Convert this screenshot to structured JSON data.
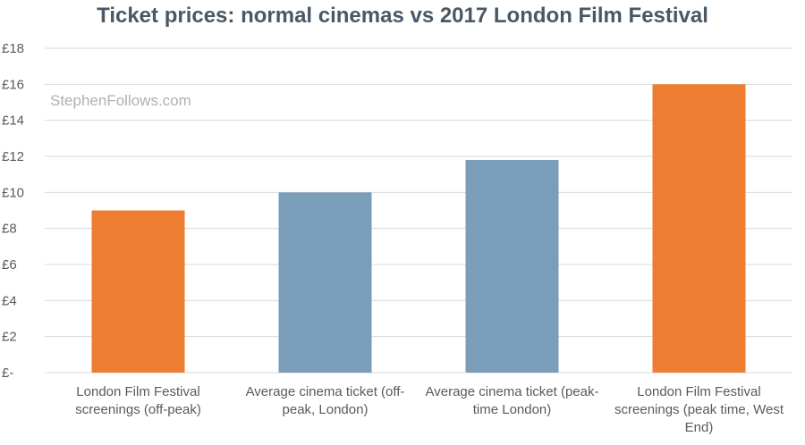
{
  "chart_data": {
    "type": "bar",
    "title": "Ticket prices: normal cinemas vs 2017 London Film Festival",
    "watermark": "StephenFollows.com",
    "xlabel": "",
    "ylabel": "",
    "ylim": [
      0,
      18
    ],
    "yticks": [
      "£-",
      "£2",
      "£4",
      "£6",
      "£8",
      "£10",
      "£12",
      "£14",
      "£16",
      "£18"
    ],
    "grid": true,
    "categories": [
      [
        "London Film Festival",
        "screenings (off-peak)"
      ],
      [
        "Average cinema ticket (off-",
        "peak, London)"
      ],
      [
        "Average cinema ticket (peak-",
        "time London)"
      ],
      [
        "London Film Festival",
        "screenings (peak time, West",
        "End)"
      ]
    ],
    "values": [
      9,
      10,
      11.8,
      16
    ],
    "colors": [
      "#ed7d31",
      "#7a9db9",
      "#7a9db9",
      "#ed7d31"
    ],
    "grid_color": "#d9d9d9"
  }
}
